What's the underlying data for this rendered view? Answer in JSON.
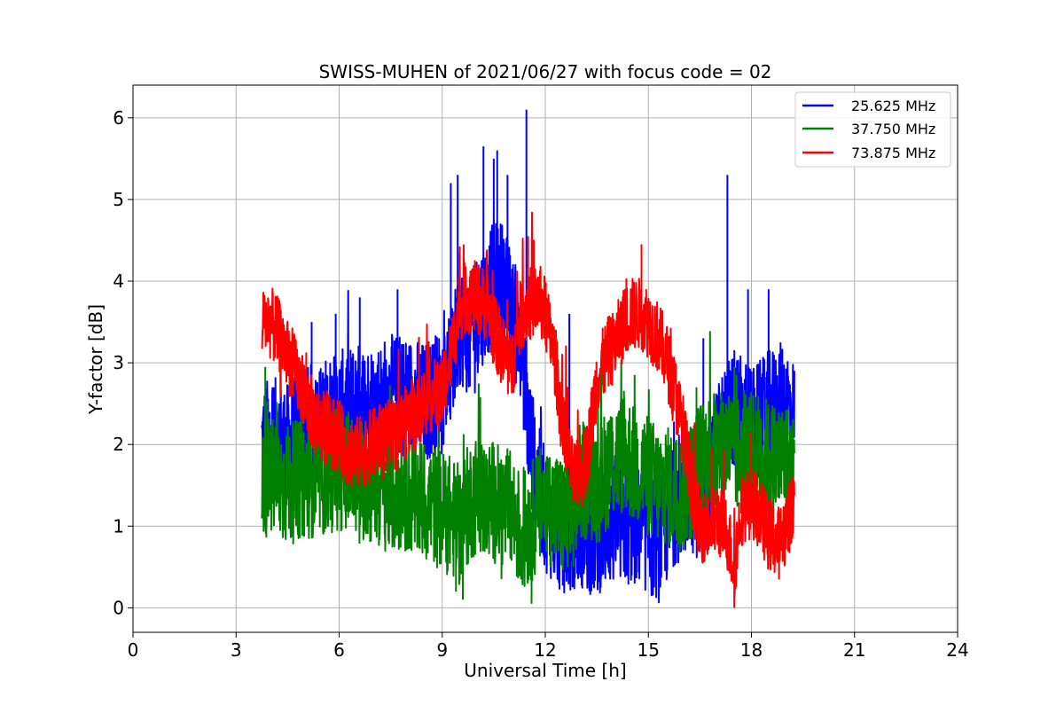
{
  "chart_data": {
    "type": "line",
    "title": "SWISS-MUHEN of 2021/06/27 with focus code = 02",
    "xlabel": "Universal Time [h]",
    "ylabel": "Y-factor [dB]",
    "xlim": [
      0,
      24
    ],
    "ylim": [
      -0.3,
      6.4
    ],
    "xticks": [
      0,
      3,
      6,
      9,
      12,
      15,
      18,
      21,
      24
    ],
    "yticks": [
      0,
      1,
      2,
      3,
      4,
      5,
      6
    ],
    "grid": true,
    "legend_position": "top-right",
    "series": [
      {
        "name": "25.625 MHz",
        "color": "#0000ff",
        "x": [
          3.75,
          4.0,
          4.5,
          5.0,
          5.5,
          6.0,
          6.5,
          7.0,
          7.5,
          8.0,
          8.5,
          9.0,
          9.3,
          9.5,
          9.8,
          10.0,
          10.3,
          10.5,
          10.8,
          11.0,
          11.3,
          11.5,
          11.8,
          12.0,
          12.3,
          12.5,
          12.8,
          13.0,
          13.3,
          13.5,
          13.8,
          14.0,
          14.3,
          14.5,
          14.8,
          15.0,
          15.3,
          15.5,
          15.8,
          16.0,
          16.3,
          16.5,
          16.8,
          17.0,
          17.3,
          17.5,
          17.8,
          18.0,
          18.3,
          18.5,
          18.8,
          19.0,
          19.25
        ],
        "y": [
          2.0,
          2.1,
          2.0,
          2.2,
          2.3,
          2.4,
          2.5,
          2.5,
          2.6,
          2.6,
          2.5,
          2.7,
          3.0,
          3.5,
          3.3,
          3.6,
          3.8,
          4.0,
          4.0,
          3.6,
          3.3,
          2.2,
          1.5,
          1.2,
          1.0,
          0.9,
          1.0,
          1.0,
          0.9,
          0.9,
          1.0,
          1.0,
          1.0,
          1.0,
          1.0,
          0.9,
          0.8,
          1.0,
          1.3,
          1.3,
          1.4,
          1.3,
          1.5,
          2.0,
          2.3,
          2.4,
          2.3,
          2.2,
          2.3,
          2.4,
          2.5,
          2.5,
          2.3
        ],
        "spikes": [
          [
            4.3,
            3.0
          ],
          [
            5.2,
            3.5
          ],
          [
            5.9,
            3.6
          ],
          [
            6.6,
            3.8
          ],
          [
            7.7,
            3.9
          ],
          [
            9.25,
            5.2
          ],
          [
            9.45,
            5.3
          ],
          [
            10.2,
            5.65
          ],
          [
            10.5,
            5.5
          ],
          [
            10.6,
            5.6
          ],
          [
            10.9,
            5.3
          ],
          [
            11.45,
            6.1
          ],
          [
            12.7,
            3.6
          ],
          [
            16.6,
            3.3
          ],
          [
            17.3,
            5.3
          ],
          [
            17.9,
            3.9
          ],
          [
            18.5,
            3.9
          ]
        ]
      },
      {
        "name": "37.750 MHz",
        "color": "#008000",
        "x": [
          3.75,
          4.0,
          4.5,
          5.0,
          5.5,
          6.0,
          6.5,
          7.0,
          7.5,
          8.0,
          8.5,
          9.0,
          9.3,
          9.5,
          9.8,
          10.0,
          10.3,
          10.5,
          10.8,
          11.0,
          11.3,
          11.5,
          11.8,
          12.0,
          12.3,
          12.5,
          12.8,
          13.0,
          13.3,
          13.5,
          13.8,
          14.0,
          14.3,
          14.5,
          14.8,
          15.0,
          15.3,
          15.5,
          15.8,
          16.0,
          16.3,
          16.5,
          16.8,
          17.0,
          17.3,
          17.5,
          17.8,
          18.0,
          18.3,
          18.5,
          18.8,
          19.0,
          19.25
        ],
        "y": [
          1.6,
          1.6,
          1.5,
          1.6,
          1.6,
          1.7,
          1.6,
          1.5,
          1.4,
          1.4,
          1.3,
          1.2,
          1.1,
          1.0,
          1.3,
          1.4,
          1.3,
          1.3,
          1.2,
          1.2,
          0.9,
          1.0,
          1.2,
          1.3,
          1.2,
          1.1,
          1.2,
          1.5,
          1.6,
          1.5,
          1.7,
          1.8,
          1.9,
          1.8,
          1.7,
          1.6,
          1.5,
          1.5,
          1.4,
          1.4,
          1.6,
          1.8,
          1.9,
          1.9,
          2.0,
          1.9,
          1.8,
          1.9,
          1.9,
          1.8,
          1.8,
          1.8,
          1.6
        ],
        "spikes": [
          [
            3.85,
            2.95
          ],
          [
            4.2,
            2.4
          ],
          [
            5.1,
            2.2
          ],
          [
            9.4,
            0.2
          ],
          [
            9.6,
            0.1
          ],
          [
            11.6,
            0.05
          ],
          [
            14.6,
            2.85
          ],
          [
            17.5,
            2.95
          ],
          [
            16.4,
            2.7
          ]
        ]
      },
      {
        "name": "73.875 MHz",
        "color": "#ff0000",
        "x": [
          3.75,
          4.0,
          4.3,
          4.6,
          5.0,
          5.3,
          5.6,
          6.0,
          6.3,
          6.6,
          7.0,
          7.3,
          7.6,
          8.0,
          8.3,
          8.6,
          9.0,
          9.3,
          9.5,
          9.7,
          10.0,
          10.3,
          10.5,
          10.8,
          11.0,
          11.3,
          11.5,
          11.8,
          12.0,
          12.3,
          12.5,
          12.8,
          13.0,
          13.2,
          13.5,
          13.8,
          14.0,
          14.3,
          14.5,
          14.8,
          15.0,
          15.3,
          15.5,
          15.8,
          16.0,
          16.3,
          16.5,
          16.8,
          17.0,
          17.3,
          17.5,
          17.7,
          18.0,
          18.3,
          18.5,
          18.8,
          19.0,
          19.25
        ],
        "y": [
          3.5,
          3.5,
          3.3,
          3.0,
          2.6,
          2.3,
          2.2,
          2.1,
          1.9,
          1.9,
          2.0,
          2.1,
          2.1,
          2.3,
          2.4,
          2.6,
          2.6,
          3.2,
          3.7,
          3.8,
          3.8,
          3.7,
          3.4,
          3.1,
          2.9,
          3.6,
          3.7,
          3.8,
          3.6,
          3.0,
          2.2,
          1.6,
          1.6,
          1.8,
          2.8,
          3.1,
          3.2,
          3.5,
          3.6,
          3.6,
          3.5,
          3.3,
          3.1,
          2.6,
          2.2,
          1.4,
          1.0,
          1.0,
          1.1,
          0.9,
          0.5,
          1.2,
          1.3,
          1.1,
          0.9,
          0.8,
          1.0,
          1.3
        ],
        "spikes": [
          [
            3.8,
            3.7
          ],
          [
            9.5,
            4.35
          ],
          [
            11.5,
            4.55
          ],
          [
            14.8,
            4.45
          ],
          [
            17.5,
            0.0
          ]
        ]
      }
    ]
  }
}
